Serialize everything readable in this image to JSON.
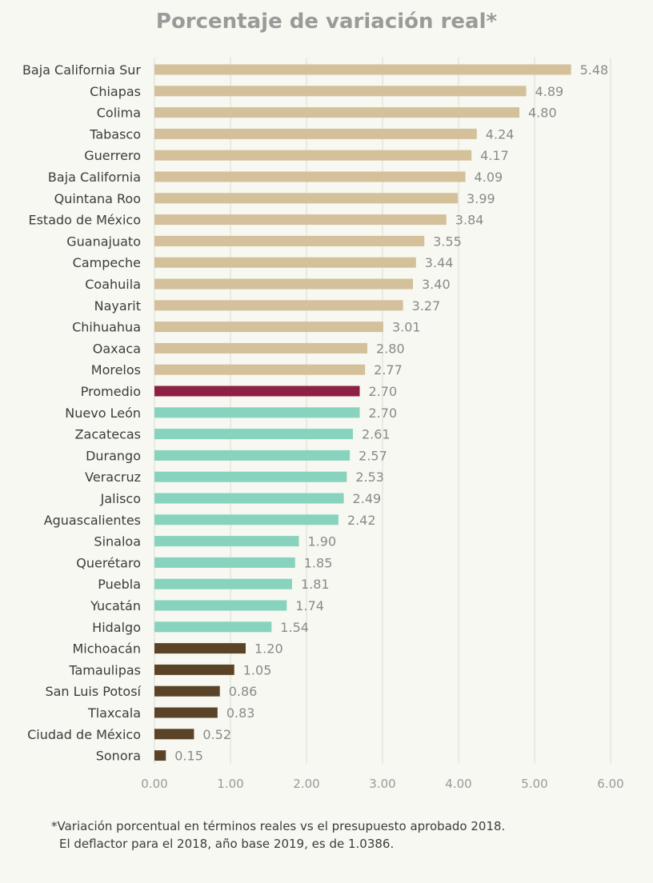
{
  "title": "Porcentaje de variación real*",
  "footnote": {
    "line1": "*Variación porcentual en términos reales vs el presupuesto aprobado 2018.",
    "line2": "El deflactor para el 2018, año base 2019, es de 1.0386."
  },
  "colors": {
    "above_average": "#d4c09a",
    "average": "#8e2043",
    "below_average": "#87d3bd",
    "lowest": "#5b4328",
    "grid": "#dcdcd4"
  },
  "chart_data": {
    "type": "bar",
    "orientation": "horizontal",
    "title": "Porcentaje de variación real*",
    "xlim": [
      0,
      6
    ],
    "x_ticks": [
      "0.00",
      "1.00",
      "2.00",
      "3.00",
      "4.00",
      "5.00",
      "6.00"
    ],
    "grid": true,
    "categories": [
      "Baja California Sur",
      "Chiapas",
      "Colima",
      "Tabasco",
      "Guerrero",
      "Baja California",
      "Quintana Roo",
      "Estado de México",
      "Guanajuato",
      "Campeche",
      "Coahuila",
      "Nayarit",
      "Chihuahua",
      "Oaxaca",
      "Morelos",
      "Promedio",
      "Nuevo León",
      "Zacatecas",
      "Durango",
      "Veracruz",
      "Jalisco",
      "Aguascalientes",
      "Sinaloa",
      "Querétaro",
      "Puebla",
      "Yucatán",
      "Hidalgo",
      "Michoacán",
      "Tamaulipas",
      "San Luis Potosí",
      "Tlaxcala",
      "Ciudad de México",
      "Sonora"
    ],
    "values": [
      5.48,
      4.89,
      4.8,
      4.24,
      4.17,
      4.09,
      3.99,
      3.84,
      3.55,
      3.44,
      3.4,
      3.27,
      3.01,
      2.8,
      2.77,
      2.7,
      2.7,
      2.61,
      2.57,
      2.53,
      2.49,
      2.42,
      1.9,
      1.85,
      1.81,
      1.74,
      1.54,
      1.2,
      1.05,
      0.86,
      0.83,
      0.52,
      0.15
    ],
    "value_labels": [
      "5.48",
      "4.89",
      "4.80",
      "4.24",
      "4.17",
      "4.09",
      "3.99",
      "3.84",
      "3.55",
      "3.44",
      "3.40",
      "3.27",
      "3.01",
      "2.80",
      "2.77",
      "2.70",
      "2.70",
      "2.61",
      "2.57",
      "2.53",
      "2.49",
      "2.42",
      "1.90",
      "1.85",
      "1.81",
      "1.74",
      "1.54",
      "1.20",
      "1.05",
      "0.86",
      "0.83",
      "0.52",
      "0.15"
    ],
    "groups": [
      "above_average",
      "above_average",
      "above_average",
      "above_average",
      "above_average",
      "above_average",
      "above_average",
      "above_average",
      "above_average",
      "above_average",
      "above_average",
      "above_average",
      "above_average",
      "above_average",
      "above_average",
      "average",
      "below_average",
      "below_average",
      "below_average",
      "below_average",
      "below_average",
      "below_average",
      "below_average",
      "below_average",
      "below_average",
      "below_average",
      "below_average",
      "lowest",
      "lowest",
      "lowest",
      "lowest",
      "lowest",
      "lowest"
    ]
  }
}
